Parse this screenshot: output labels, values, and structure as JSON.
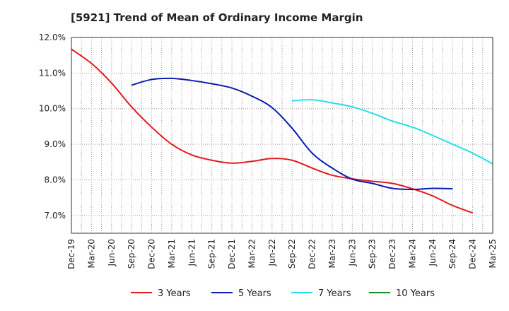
{
  "chart_data": {
    "type": "line",
    "title": "[5921]  Trend of Mean of Ordinary Income Margin",
    "xlabel": "",
    "ylabel": "",
    "ylim": [
      6.5,
      12.0
    ],
    "yticks": [
      7.0,
      8.0,
      9.0,
      10.0,
      11.0,
      12.0
    ],
    "ytick_labels": [
      "7.0%",
      "8.0%",
      "9.0%",
      "10.0%",
      "11.0%",
      "12.0%"
    ],
    "xticks": [
      "Dec-19",
      "Mar-20",
      "Jun-20",
      "Sep-20",
      "Dec-20",
      "Mar-21",
      "Jun-21",
      "Sep-21",
      "Dec-21",
      "Mar-22",
      "Jun-22",
      "Sep-22",
      "Dec-22",
      "Mar-23",
      "Jun-23",
      "Sep-23",
      "Dec-23",
      "Mar-24",
      "Jun-24",
      "Sep-24",
      "Dec-24",
      "Mar-25"
    ],
    "grid": true,
    "legend_position": "bottom",
    "series": [
      {
        "name": "3 Years",
        "color": "#e31a1c",
        "start_index": 0,
        "values": [
          11.67,
          11.27,
          10.72,
          10.05,
          9.48,
          9.0,
          8.7,
          8.55,
          8.47,
          8.52,
          8.6,
          8.55,
          8.33,
          8.13,
          8.03,
          7.96,
          7.9,
          7.75,
          7.55,
          7.28,
          7.07
        ]
      },
      {
        "name": "5 Years",
        "color": "#0a1ab0",
        "start_index": 3,
        "values": [
          10.66,
          10.82,
          10.85,
          10.79,
          10.7,
          10.58,
          10.35,
          10.03,
          9.45,
          8.75,
          8.33,
          8.02,
          7.9,
          7.76,
          7.73,
          7.76,
          7.75
        ]
      },
      {
        "name": "7 Years",
        "color": "#22e0ec",
        "start_index": 11,
        "values": [
          10.22,
          10.25,
          10.16,
          10.05,
          9.87,
          9.65,
          9.48,
          9.25,
          9.0,
          8.75,
          8.45
        ]
      },
      {
        "name": "10 Years",
        "color": "#1f8a1f",
        "start_index": 0,
        "values": []
      }
    ]
  }
}
